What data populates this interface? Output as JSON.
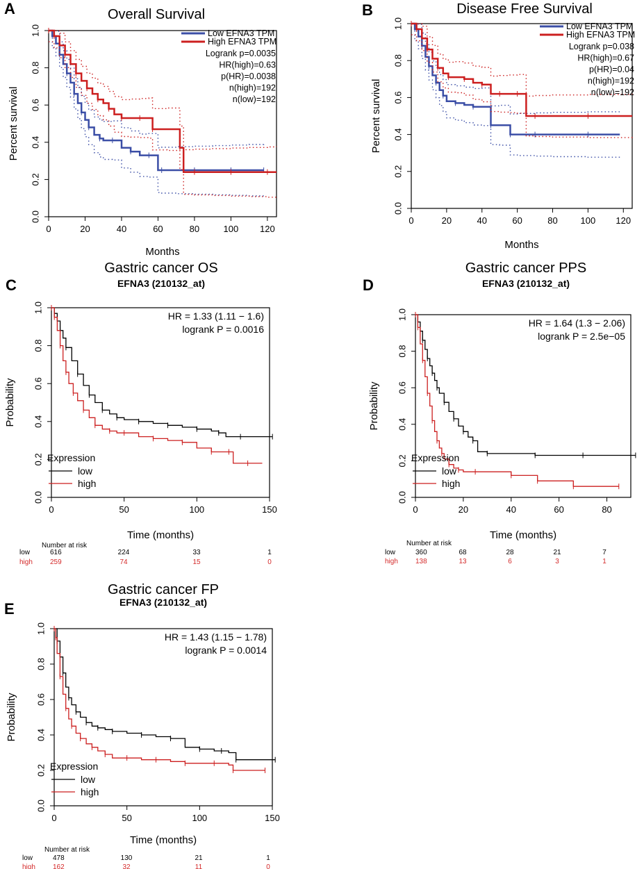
{
  "colors": {
    "blue": "#3b4ea6",
    "red": "#cc1f1f",
    "black": "#000000",
    "risk_red": "#d42a2a"
  },
  "chart_data": [
    {
      "panel": "A",
      "type": "line",
      "title": "Overall Survival",
      "xlabel": "Months",
      "ylabel": "Percent survival",
      "xlim": [
        0,
        125
      ],
      "ylim": [
        0,
        1
      ],
      "xticks": [
        0,
        20,
        40,
        60,
        80,
        100,
        120
      ],
      "yticks": [
        0.0,
        0.2,
        0.4,
        0.6,
        0.8,
        1.0
      ],
      "ytick_labels": [
        "0.0",
        "0.2",
        "0.4",
        "0.6",
        "0.8",
        "1.0"
      ],
      "legend": [
        "Low EFNA3 TPM",
        "High EFNA3 TPM"
      ],
      "annotations": [
        "Logrank p=0.0035",
        "HR(high)=0.63",
        "p(HR)=0.0038",
        "n(high)=192",
        "n(low)=192"
      ],
      "series": [
        {
          "name": "Low EFNA3 TPM",
          "color": "blue",
          "x": [
            0,
            2,
            4,
            6,
            8,
            10,
            12,
            14,
            16,
            18,
            20,
            22,
            25,
            28,
            30,
            35,
            40,
            45,
            50,
            55,
            60,
            62,
            70,
            80,
            90,
            100,
            110,
            118
          ],
          "y": [
            1.0,
            0.97,
            0.93,
            0.87,
            0.82,
            0.77,
            0.72,
            0.66,
            0.61,
            0.56,
            0.52,
            0.48,
            0.44,
            0.42,
            0.41,
            0.41,
            0.37,
            0.35,
            0.33,
            0.33,
            0.25,
            0.25,
            0.25,
            0.25,
            0.25,
            0.25,
            0.25,
            0.25
          ],
          "ci": true
        },
        {
          "name": "High EFNA3 TPM",
          "color": "red",
          "x": [
            0,
            3,
            6,
            9,
            12,
            15,
            18,
            21,
            24,
            27,
            30,
            33,
            36,
            40,
            45,
            50,
            55,
            57,
            65,
            72,
            74,
            80,
            90,
            100,
            110,
            120,
            125
          ],
          "y": [
            1.0,
            0.97,
            0.92,
            0.87,
            0.82,
            0.77,
            0.73,
            0.69,
            0.66,
            0.63,
            0.61,
            0.58,
            0.55,
            0.53,
            0.53,
            0.53,
            0.53,
            0.47,
            0.47,
            0.37,
            0.24,
            0.24,
            0.24,
            0.24,
            0.24,
            0.24,
            0.24
          ],
          "ci": true
        }
      ]
    },
    {
      "panel": "B",
      "type": "line",
      "title": "Disease Free Survival",
      "xlabel": "Months",
      "ylabel": "Percent survival",
      "xlim": [
        0,
        125
      ],
      "ylim": [
        0,
        1
      ],
      "xticks": [
        0,
        20,
        40,
        60,
        80,
        100,
        120
      ],
      "yticks": [
        0.0,
        0.2,
        0.4,
        0.6,
        0.8,
        1.0
      ],
      "ytick_labels": [
        "0.0",
        "0.2",
        "0.4",
        "0.6",
        "0.8",
        "1.0"
      ],
      "legend": [
        "Low EFNA3 TPM",
        "High EFNA3 TPM"
      ],
      "annotations": [
        "Logrank p=0.038",
        "HR(high)=0.67",
        "p(HR)=0.04",
        "n(high)=192",
        "n(low)=192"
      ],
      "series": [
        {
          "name": "Low EFNA3 TPM",
          "color": "blue",
          "x": [
            0,
            2,
            4,
            6,
            8,
            10,
            12,
            14,
            16,
            18,
            20,
            25,
            30,
            35,
            40,
            45,
            50,
            56,
            60,
            70,
            80,
            100,
            118
          ],
          "y": [
            1.0,
            0.97,
            0.93,
            0.88,
            0.82,
            0.77,
            0.72,
            0.68,
            0.64,
            0.61,
            0.58,
            0.57,
            0.56,
            0.55,
            0.55,
            0.45,
            0.45,
            0.4,
            0.4,
            0.4,
            0.4,
            0.4,
            0.4
          ],
          "ci": true
        },
        {
          "name": "High EFNA3 TPM",
          "color": "red",
          "x": [
            0,
            3,
            6,
            9,
            12,
            15,
            18,
            21,
            25,
            30,
            35,
            40,
            45,
            50,
            55,
            60,
            65,
            70,
            80,
            100,
            125
          ],
          "y": [
            1.0,
            0.97,
            0.92,
            0.86,
            0.81,
            0.76,
            0.73,
            0.71,
            0.71,
            0.7,
            0.68,
            0.67,
            0.62,
            0.62,
            0.62,
            0.62,
            0.5,
            0.5,
            0.5,
            0.5,
            0.5
          ],
          "ci": true
        }
      ]
    },
    {
      "panel": "C",
      "type": "line",
      "title": "Gastric cancer OS",
      "subtitle": "EFNA3 (210132_at)",
      "xlabel": "Time (months)",
      "ylabel": "Probability",
      "xlim": [
        0,
        150
      ],
      "ylim": [
        0,
        1
      ],
      "xticks": [
        0,
        50,
        100,
        150
      ],
      "yticks": [
        0.0,
        0.2,
        0.4,
        0.6,
        0.8,
        1.0
      ],
      "ytick_labels": [
        "0.0",
        "0.2",
        "0.4",
        "0.6",
        "0.8",
        "1.0"
      ],
      "hr_text": "HR = 1.33 (1.11 − 1.6)",
      "logrank_text": "logrank P = 0.0016",
      "legend_title": "Expression",
      "legend": [
        "low",
        "high"
      ],
      "series": [
        {
          "name": "low",
          "color": "black",
          "x": [
            0,
            2,
            4,
            6,
            8,
            10,
            14,
            18,
            22,
            26,
            30,
            35,
            40,
            45,
            50,
            60,
            70,
            80,
            90,
            100,
            110,
            115,
            120,
            130,
            140,
            152
          ],
          "y": [
            1.0,
            0.97,
            0.93,
            0.88,
            0.84,
            0.79,
            0.72,
            0.65,
            0.59,
            0.54,
            0.5,
            0.46,
            0.44,
            0.42,
            0.41,
            0.4,
            0.39,
            0.38,
            0.37,
            0.36,
            0.35,
            0.34,
            0.32,
            0.32,
            0.32,
            0.32
          ]
        },
        {
          "name": "high",
          "color": "red",
          "x": [
            0,
            2,
            4,
            6,
            8,
            10,
            12,
            15,
            18,
            22,
            26,
            30,
            35,
            40,
            45,
            50,
            60,
            70,
            80,
            90,
            100,
            110,
            120,
            122,
            125,
            135,
            145
          ],
          "y": [
            1.0,
            0.95,
            0.88,
            0.8,
            0.72,
            0.66,
            0.6,
            0.55,
            0.51,
            0.46,
            0.42,
            0.38,
            0.36,
            0.35,
            0.34,
            0.34,
            0.32,
            0.31,
            0.3,
            0.29,
            0.26,
            0.24,
            0.24,
            0.24,
            0.18,
            0.18,
            0.18
          ]
        }
      ],
      "risk": {
        "label": "Number at risk",
        "times": [
          0,
          50,
          100,
          150
        ],
        "rows": [
          {
            "name": "low",
            "values": [
              "616",
              "224",
              "33",
              "1"
            ]
          },
          {
            "name": "high",
            "values": [
              "259",
              "74",
              "15",
              "0"
            ]
          }
        ]
      }
    },
    {
      "panel": "D",
      "type": "line",
      "title": "Gastric cancer PPS",
      "subtitle": "EFNA3 (210132_at)",
      "xlabel": "Time (months)",
      "ylabel": "Probability",
      "xlim": [
        0,
        90
      ],
      "ylim": [
        0,
        1
      ],
      "xticks": [
        0,
        20,
        40,
        60,
        80
      ],
      "yticks": [
        0.0,
        0.2,
        0.4,
        0.6,
        0.8,
        1.0
      ],
      "ytick_labels": [
        "0.0",
        "0.2",
        "0.4",
        "0.6",
        "0.8",
        "1.0"
      ],
      "hr_text": "HR = 1.64 (1.3 − 2.06)",
      "logrank_text": "logrank P = 2.5e−05",
      "legend_title": "Expression",
      "legend": [
        "low",
        "high"
      ],
      "series": [
        {
          "name": "low",
          "color": "black",
          "x": [
            0,
            1,
            2,
            3,
            4,
            5,
            6,
            7,
            8,
            9,
            10,
            12,
            14,
            16,
            18,
            20,
            22,
            24,
            26,
            30,
            40,
            50,
            60,
            70,
            80,
            92
          ],
          "y": [
            1.0,
            0.96,
            0.91,
            0.86,
            0.81,
            0.76,
            0.72,
            0.68,
            0.64,
            0.6,
            0.57,
            0.52,
            0.47,
            0.43,
            0.39,
            0.36,
            0.33,
            0.31,
            0.25,
            0.24,
            0.24,
            0.23,
            0.23,
            0.23,
            0.23,
            0.23
          ]
        },
        {
          "name": "high",
          "color": "red",
          "x": [
            0,
            1,
            2,
            3,
            4,
            5,
            6,
            7,
            8,
            9,
            10,
            11,
            12,
            14,
            16,
            18,
            20,
            25,
            30,
            40,
            50,
            51,
            65,
            66,
            72,
            85
          ],
          "y": [
            1.0,
            0.93,
            0.84,
            0.75,
            0.66,
            0.57,
            0.5,
            0.42,
            0.36,
            0.31,
            0.27,
            0.24,
            0.21,
            0.18,
            0.16,
            0.15,
            0.14,
            0.14,
            0.14,
            0.12,
            0.12,
            0.09,
            0.09,
            0.06,
            0.06,
            0.06
          ]
        }
      ],
      "risk": {
        "label": "Number at risk",
        "times": [
          0,
          20,
          40,
          60,
          80
        ],
        "rows": [
          {
            "name": "low",
            "values": [
              "360",
              "68",
              "28",
              "21",
              "7"
            ]
          },
          {
            "name": "high",
            "values": [
              "138",
              "13",
              "6",
              "3",
              "1"
            ]
          }
        ]
      }
    },
    {
      "panel": "E",
      "type": "line",
      "title": "Gastric cancer FP",
      "subtitle": "EFNA3 (210132_at)",
      "xlabel": "Time (months)",
      "ylabel": "Probability",
      "xlim": [
        0,
        150
      ],
      "ylim": [
        0,
        1
      ],
      "xticks": [
        0,
        50,
        100,
        150
      ],
      "yticks": [
        0.0,
        0.2,
        0.4,
        0.6,
        0.8,
        1.0
      ],
      "ytick_labels": [
        "0.0",
        "0.2",
        "0.4",
        "0.6",
        "0.8",
        "1.0"
      ],
      "hr_text": "HR = 1.43 (1.15 − 1.78)",
      "logrank_text": "logrank P = 0.0014",
      "legend_title": "Expression",
      "legend": [
        "low",
        "high"
      ],
      "series": [
        {
          "name": "low",
          "color": "black",
          "x": [
            0,
            2,
            4,
            6,
            8,
            10,
            12,
            15,
            18,
            22,
            26,
            30,
            35,
            40,
            50,
            60,
            70,
            80,
            90,
            100,
            110,
            115,
            120,
            125,
            135,
            152
          ],
          "y": [
            1.0,
            0.93,
            0.84,
            0.75,
            0.67,
            0.61,
            0.57,
            0.53,
            0.5,
            0.47,
            0.45,
            0.44,
            0.43,
            0.42,
            0.41,
            0.4,
            0.39,
            0.38,
            0.33,
            0.32,
            0.31,
            0.31,
            0.3,
            0.26,
            0.26,
            0.26
          ]
        },
        {
          "name": "high",
          "color": "red",
          "x": [
            0,
            1,
            2,
            4,
            6,
            8,
            10,
            12,
            15,
            18,
            22,
            26,
            30,
            35,
            40,
            50,
            60,
            70,
            80,
            90,
            100,
            110,
            120,
            123,
            130,
            145
          ],
          "y": [
            1.0,
            0.95,
            0.86,
            0.73,
            0.63,
            0.55,
            0.49,
            0.45,
            0.41,
            0.38,
            0.35,
            0.33,
            0.31,
            0.29,
            0.27,
            0.27,
            0.26,
            0.26,
            0.25,
            0.24,
            0.24,
            0.24,
            0.23,
            0.2,
            0.2,
            0.2
          ]
        }
      ],
      "risk": {
        "label": "Number at risk",
        "times": [
          0,
          50,
          100,
          150
        ],
        "rows": [
          {
            "name": "low",
            "values": [
              "478",
              "130",
              "21",
              "1"
            ]
          },
          {
            "name": "high",
            "values": [
              "162",
              "32",
              "11",
              "0"
            ]
          }
        ]
      }
    }
  ]
}
